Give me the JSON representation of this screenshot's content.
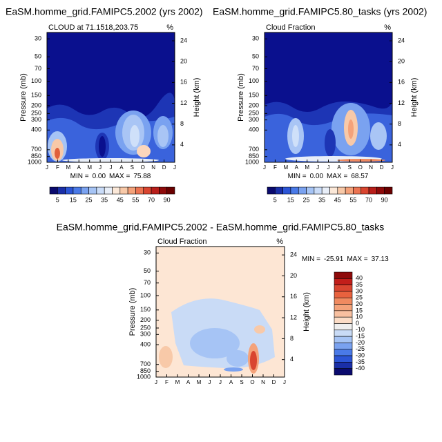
{
  "charts": [
    {
      "type": "contour",
      "title": "EaSM.homme_grid.FAMIPC5.2002 (yrs 2002)",
      "subtitle": "CLOUD at 71.1518,203.75",
      "unit": "%",
      "x_labels": [
        "J",
        "F",
        "M",
        "A",
        "M",
        "J",
        "J",
        "A",
        "S",
        "O",
        "N",
        "D",
        "J"
      ],
      "y_label": "Pressure (mb)",
      "y2_label": "Height (km)",
      "yscale": "log",
      "ylim": [
        1000,
        25
      ],
      "yticks": [
        30,
        50,
        70,
        100,
        150,
        200,
        250,
        300,
        400,
        700,
        850,
        1000
      ],
      "y2lim": [
        0.66,
        25.6
      ],
      "y2ticks": [
        4,
        8,
        12,
        16,
        20,
        24
      ],
      "min_text": "MIN =",
      "min": {
        "value": 0,
        "label": "0.00"
      },
      "max_text": "MAX =",
      "max": 75.88,
      "colorbar": {
        "orientation": "horizontal",
        "colors": [
          "#0a0a6e",
          "#1a2fa8",
          "#2c55d6",
          "#4a7ae8",
          "#7aa2f0",
          "#a6c4f5",
          "#cadcf8",
          "#e8eef8",
          "#fbe8d8",
          "#f8c9a8",
          "#f4a27a",
          "#ec7452",
          "#d94530",
          "#b81e1a",
          "#8e0a0a",
          "#6a0000"
        ],
        "labels": [
          5,
          15,
          25,
          35,
          45,
          55,
          70,
          90
        ]
      }
    },
    {
      "type": "contour",
      "title": "EaSM.homme_grid.FAMIPC5.80_tasks (yrs 2002)",
      "subtitle": "Cloud Fraction",
      "unit": "%",
      "x_labels": [
        "J",
        "F",
        "M",
        "A",
        "M",
        "J",
        "J",
        "A",
        "S",
        "O",
        "N",
        "D",
        "J"
      ],
      "y_label": "Pressure (mb)",
      "y2_label": "Height (km)",
      "yscale": "log",
      "ylim": [
        1000,
        25
      ],
      "yticks": [
        30,
        50,
        70,
        100,
        150,
        200,
        250,
        300,
        400,
        700,
        850,
        1000
      ],
      "y2lim": [
        0.66,
        25.6
      ],
      "y2ticks": [
        4,
        8,
        12,
        16,
        20,
        24
      ],
      "min_text": "MIN =",
      "min": {
        "value": 0,
        "label": "0.00"
      },
      "max_text": "MAX =",
      "max": 68.57,
      "colorbar": {
        "orientation": "horizontal",
        "colors": [
          "#0a0a6e",
          "#1a2fa8",
          "#2c55d6",
          "#4a7ae8",
          "#7aa2f0",
          "#a6c4f5",
          "#cadcf8",
          "#e8eef8",
          "#fbe8d8",
          "#f8c9a8",
          "#f4a27a",
          "#ec7452",
          "#d94530",
          "#b81e1a",
          "#8e0a0a",
          "#6a0000"
        ],
        "labels": [
          5,
          15,
          25,
          35,
          45,
          55,
          70,
          90
        ]
      }
    },
    {
      "type": "contour",
      "title": "EaSM.homme_grid.FAMIPC5.2002 - EaSM.homme_grid.FAMIPC5.80_tasks",
      "subtitle": "Cloud Fraction",
      "unit": "%",
      "x_labels": [
        "J",
        "F",
        "M",
        "A",
        "M",
        "J",
        "J",
        "A",
        "S",
        "O",
        "N",
        "D",
        "J"
      ],
      "y_label": "Pressure (mb)",
      "y2_label": "Height (km)",
      "yscale": "log",
      "ylim": [
        1000,
        25
      ],
      "yticks": [
        30,
        50,
        70,
        100,
        150,
        200,
        250,
        300,
        400,
        700,
        850,
        1000
      ],
      "y2lim": [
        0.66,
        25.6
      ],
      "y2ticks": [
        4,
        8,
        12,
        16,
        20,
        24
      ],
      "min_text": "MIN =",
      "min": -25.91,
      "max_text": "MAX =",
      "max": 37.13,
      "colorbar": {
        "orientation": "vertical",
        "colors": [
          "#8e0a0a",
          "#c21e1a",
          "#d94530",
          "#e8623e",
          "#f08a60",
          "#f4a27a",
          "#f8c0a0",
          "#fbdcc6",
          "#eeeeee",
          "#c9dbf6",
          "#a6c4f5",
          "#7aa2f0",
          "#4a7ae8",
          "#2c55d6",
          "#1a2fa8",
          "#0a0a6e"
        ],
        "labels": [
          40,
          35,
          30,
          25,
          20,
          15,
          10,
          0,
          -10,
          -15,
          -20,
          -25,
          -30,
          -35,
          -40
        ]
      }
    }
  ]
}
